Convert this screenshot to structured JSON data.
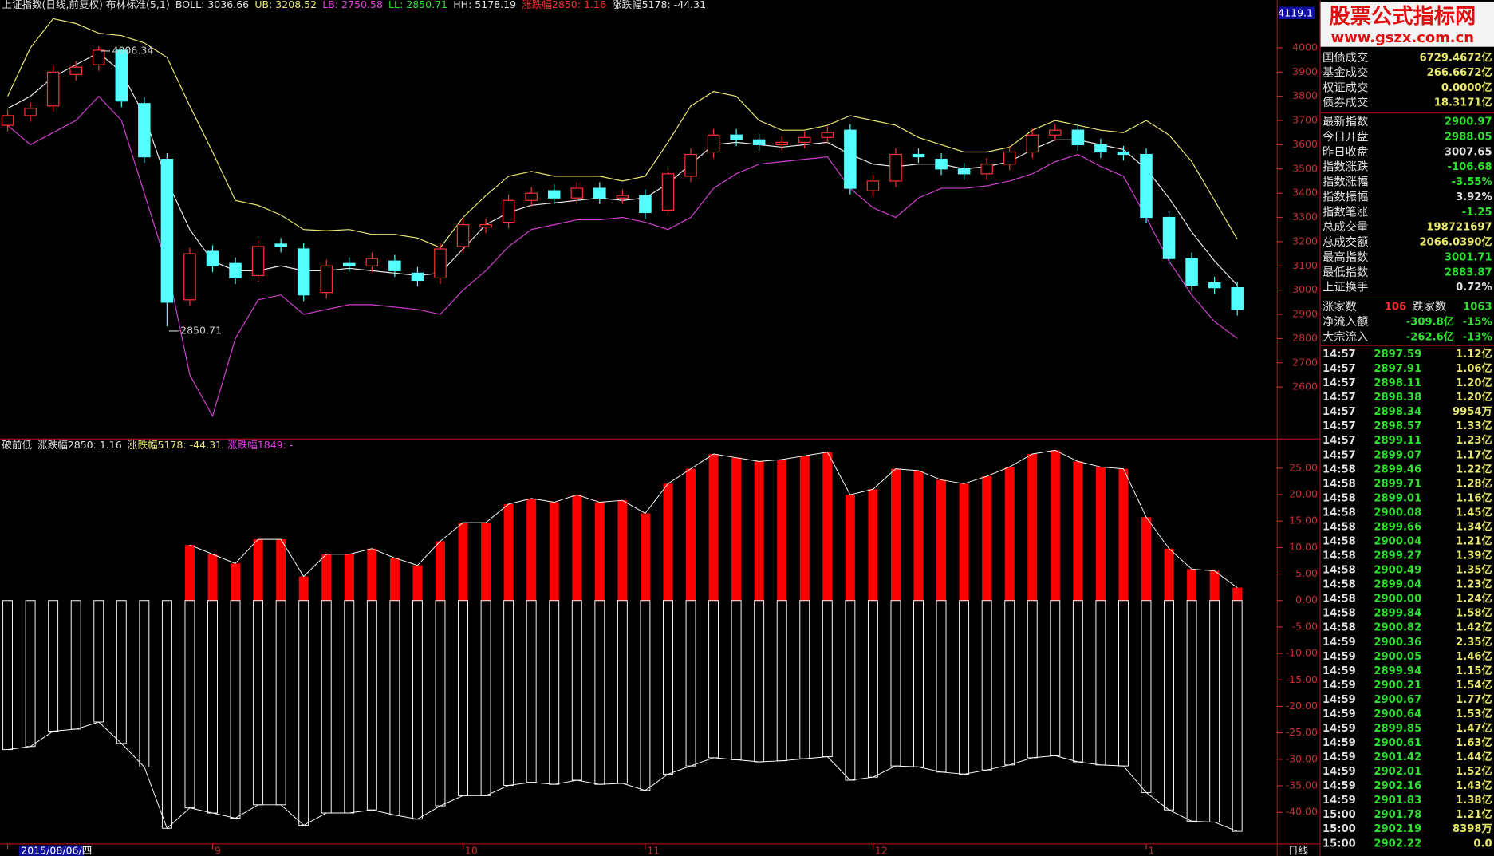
{
  "header": [
    {
      "text": "上证指数(日线,前复权) 布林标准(5,1)",
      "color": "#e0e0e0"
    },
    {
      "text": "BOLL: 3036.66",
      "color": "#e0e0e0"
    },
    {
      "text": "UB: 3208.52",
      "color": "#e8e870"
    },
    {
      "text": "LB: 2750.58",
      "color": "#e040e0"
    },
    {
      "text": "LL: 2850.71",
      "color": "#30e030"
    },
    {
      "text": "HH: 5178.19",
      "color": "#e0e0e0"
    },
    {
      "text": "涨跌幅2850: 1.16",
      "color": "#ff3030"
    },
    {
      "text": "涨跌幅5178: -44.31",
      "color": "#e0e0e0"
    }
  ],
  "sub_header": [
    {
      "text": "破前低",
      "color": "#e0e0e0"
    },
    {
      "text": "涨跌幅2850: 1.16",
      "color": "#e0e0e0"
    },
    {
      "text": "涨跌幅5178: -44.31",
      "color": "#e8e870"
    },
    {
      "text": "涨跌幅1849: -",
      "color": "#e040e0"
    }
  ],
  "chart_data": [
    {
      "type": "candlestick",
      "cursor_value": "4119.1",
      "ylim": [
        2387.7,
        4196.6
      ],
      "yticks": [
        2600,
        2700,
        2800,
        2900,
        3000,
        3100,
        3200,
        3300,
        3400,
        3500,
        3600,
        3700,
        3800,
        3900,
        4000
      ],
      "up_color": "#ff3232",
      "down_color": "#54ffff",
      "open": [
        3680,
        3720,
        3760,
        3890,
        3930,
        3990,
        3770,
        3540,
        2960,
        3160,
        3110,
        3060,
        3190,
        3170,
        2990,
        3110,
        3100,
        3120,
        3070,
        3050,
        3180,
        3260,
        3280,
        3370,
        3410,
        3380,
        3420,
        3380,
        3390,
        3330,
        3470,
        3570,
        3640,
        3620,
        3600,
        3610,
        3630,
        3660,
        3410,
        3450,
        3560,
        3540,
        3500,
        3480,
        3520,
        3570,
        3640,
        3660,
        3600,
        3570,
        3560,
        3300,
        3130,
        3030,
        3010
      ],
      "high": [
        3745,
        3775,
        3925,
        3945,
        4006.34,
        3995,
        3795,
        3565,
        3175,
        3185,
        3135,
        3205,
        3215,
        3195,
        3125,
        3135,
        3155,
        3145,
        3095,
        3195,
        3295,
        3295,
        3395,
        3425,
        3435,
        3445,
        3445,
        3415,
        3415,
        3505,
        3585,
        3665,
        3665,
        3645,
        3635,
        3655,
        3675,
        3685,
        3475,
        3585,
        3585,
        3565,
        3525,
        3545,
        3595,
        3665,
        3685,
        3685,
        3625,
        3595,
        3585,
        3325,
        3155,
        3055,
        3035
      ],
      "low": [
        3655,
        3695,
        3735,
        3865,
        3905,
        3755,
        3525,
        2850.71,
        2935,
        3075,
        3025,
        3035,
        3155,
        2955,
        2965,
        3075,
        3075,
        3055,
        3015,
        3025,
        3155,
        3235,
        3255,
        3345,
        3355,
        3355,
        3355,
        3355,
        3295,
        3305,
        3445,
        3545,
        3595,
        3575,
        3575,
        3585,
        3605,
        3395,
        3385,
        3425,
        3525,
        3475,
        3455,
        3455,
        3495,
        3545,
        3615,
        3575,
        3545,
        3535,
        3275,
        3105,
        2995,
        2985,
        2895
      ],
      "close": [
        3720,
        3750,
        3900,
        3920,
        3990,
        3780,
        3550,
        2950,
        3150,
        3100,
        3050,
        3180,
        3180,
        2980,
        3100,
        3100,
        3130,
        3080,
        3040,
        3170,
        3270,
        3270,
        3370,
        3400,
        3380,
        3420,
        3380,
        3390,
        3320,
        3480,
        3560,
        3640,
        3620,
        3600,
        3610,
        3630,
        3650,
        3420,
        3450,
        3560,
        3550,
        3500,
        3480,
        3520,
        3570,
        3640,
        3660,
        3600,
        3570,
        3560,
        3300,
        3130,
        3020,
        3010,
        2920
      ],
      "lines": [
        {
          "color": "#e8e870",
          "values": [
            3800,
            4000,
            4120,
            4100,
            4060,
            4050,
            4020,
            3960,
            3760,
            3570,
            3370,
            3350,
            3310,
            3250,
            3245,
            3250,
            3230,
            3230,
            3215,
            3175,
            3300,
            3390,
            3470,
            3490,
            3470,
            3470,
            3470,
            3450,
            3470,
            3610,
            3760,
            3820,
            3800,
            3700,
            3660,
            3660,
            3680,
            3720,
            3700,
            3680,
            3630,
            3600,
            3570,
            3570,
            3590,
            3660,
            3700,
            3680,
            3660,
            3650,
            3700,
            3640,
            3530,
            3370,
            3210
          ]
        },
        {
          "color": "#e8e8e8",
          "values": [
            3750,
            3800,
            3880,
            3930,
            3980,
            3900,
            3720,
            3450,
            3250,
            3120,
            3080,
            3080,
            3100,
            3080,
            3080,
            3090,
            3080,
            3070,
            3060,
            3070,
            3170,
            3270,
            3320,
            3350,
            3360,
            3370,
            3380,
            3370,
            3380,
            3440,
            3520,
            3600,
            3610,
            3600,
            3590,
            3600,
            3610,
            3560,
            3520,
            3510,
            3520,
            3520,
            3500,
            3510,
            3530,
            3580,
            3620,
            3620,
            3600,
            3580,
            3500,
            3380,
            3240,
            3120,
            3020
          ]
        },
        {
          "color": "#d040d0",
          "values": [
            3680,
            3600,
            3650,
            3700,
            3800,
            3700,
            3400,
            3100,
            2650,
            2480,
            2800,
            2960,
            2980,
            2900,
            2920,
            2940,
            2940,
            2930,
            2920,
            2900,
            3000,
            3080,
            3180,
            3250,
            3270,
            3290,
            3290,
            3300,
            3280,
            3250,
            3300,
            3420,
            3480,
            3520,
            3530,
            3540,
            3550,
            3420,
            3340,
            3300,
            3380,
            3420,
            3420,
            3430,
            3450,
            3480,
            3530,
            3560,
            3510,
            3470,
            3300,
            3120,
            2980,
            2870,
            2800
          ]
        }
      ],
      "annotations": [
        4006.34,
        2850.71
      ]
    },
    {
      "type": "bar",
      "ylim": [
        -45.9,
        30.25
      ],
      "yticks": [
        {
          "value": 25,
          "label": "25.00"
        },
        {
          "value": 20,
          "label": "20.00"
        },
        {
          "value": 15,
          "label": "15.00"
        },
        {
          "value": 10,
          "label": "10.00"
        },
        {
          "value": 5,
          "label": "5.00"
        },
        {
          "value": 0,
          "label": "0.00"
        },
        {
          "value": -5,
          "label": "-5.00"
        },
        {
          "value": -10,
          "label": "-10.00"
        },
        {
          "value": -15,
          "label": "-15.00"
        },
        {
          "value": -20,
          "label": "-20.00"
        },
        {
          "value": -25,
          "label": "-25.00"
        },
        {
          "value": -30,
          "label": "-30.00"
        },
        {
          "value": -35,
          "label": "-35.00"
        },
        {
          "value": -40,
          "label": "-40.00"
        }
      ],
      "categories": [
        "2015/08/06/四",
        null,
        null,
        null,
        null,
        null,
        null,
        null,
        null,
        "9",
        null,
        null,
        null,
        null,
        null,
        null,
        null,
        null,
        null,
        null,
        "10",
        null,
        null,
        null,
        null,
        null,
        null,
        null,
        "11",
        null,
        null,
        null,
        null,
        null,
        null,
        null,
        null,
        null,
        "12",
        null,
        null,
        null,
        null,
        null,
        null,
        null,
        null,
        null,
        null,
        null,
        "1",
        null,
        null,
        null,
        null
      ],
      "axis_unit": "日线",
      "outline_color": "#ffffff",
      "series": [
        {
          "color": "#ff0000",
          "filled": true,
          "values": [
            null,
            null,
            null,
            null,
            null,
            null,
            null,
            null,
            10.5,
            8.74,
            6.99,
            11.55,
            11.55,
            4.54,
            8.74,
            8.74,
            9.8,
            8.04,
            6.64,
            11.2,
            14.71,
            14.71,
            18.22,
            19.27,
            18.57,
            19.97,
            18.57,
            18.92,
            16.46,
            22.07,
            24.88,
            27.69,
            26.99,
            26.28,
            26.64,
            27.34,
            28.04,
            19.97,
            21.02,
            24.88,
            24.53,
            22.78,
            22.07,
            23.48,
            25.23,
            27.69,
            28.39,
            26.28,
            25.23,
            24.88,
            15.76,
            9.8,
            5.94,
            5.59,
            2.43
          ]
        },
        {
          "color": "#ffffff",
          "filled": false,
          "values": [
            -28.16,
            -27.58,
            -24.68,
            -24.3,
            -22.95,
            -27.0,
            -31.44,
            -43.03,
            -39.17,
            -40.13,
            -41.1,
            -38.59,
            -38.59,
            -42.45,
            -40.13,
            -40.13,
            -39.55,
            -40.52,
            -41.29,
            -38.78,
            -36.85,
            -36.85,
            -34.92,
            -34.34,
            -34.73,
            -33.95,
            -34.73,
            -34.53,
            -35.88,
            -32.8,
            -31.25,
            -29.71,
            -30.09,
            -30.48,
            -30.28,
            -29.9,
            -29.51,
            -33.95,
            -33.37,
            -31.25,
            -31.44,
            -32.41,
            -32.8,
            -32.02,
            -31.06,
            -29.71,
            -29.32,
            -30.48,
            -31.06,
            -31.25,
            -36.27,
            -39.55,
            -41.68,
            -41.87,
            -43.61
          ]
        }
      ]
    }
  ],
  "panel": {
    "logo": "股票公式指标网",
    "url": "www.gszx.com.cn",
    "stats": [
      {
        "label": "国债成交",
        "value": "6729.4672亿",
        "color": "#e8e870"
      },
      {
        "label": "基金成交",
        "value": "266.6672亿",
        "color": "#e8e870"
      },
      {
        "label": "权证成交",
        "value": "0.0000亿",
        "color": "#e8e870"
      },
      {
        "label": "债券成交",
        "value": "18.3171亿",
        "color": "#e8e870"
      },
      {
        "label": "最新指数",
        "value": "2900.97",
        "color": "#30e030"
      },
      {
        "label": "今日开盘",
        "value": "2988.05",
        "color": "#30e030"
      },
      {
        "label": "昨日收盘",
        "value": "3007.65",
        "color": "#e0e0e0"
      },
      {
        "label": "指数涨跌",
        "value": "-106.68",
        "color": "#30e030"
      },
      {
        "label": "指数涨幅",
        "value": "-3.55%",
        "color": "#30e030"
      },
      {
        "label": "指数振幅",
        "value": "3.92%",
        "color": "#e0e0e0"
      },
      {
        "label": "指数笔涨",
        "value": "-1.25",
        "color": "#30e030"
      },
      {
        "label": "总成交量",
        "value": "198721697",
        "color": "#e8e870"
      },
      {
        "label": "总成交额",
        "value": "2066.0390亿",
        "color": "#e8e870"
      },
      {
        "label": "最高指数",
        "value": "3001.71",
        "color": "#30e030"
      },
      {
        "label": "最低指数",
        "value": "2883.87",
        "color": "#30e030"
      },
      {
        "label": "上证换手",
        "value": "0.72%",
        "color": "#e0e0e0"
      }
    ],
    "breadth": [
      "涨家数",
      "106",
      "跌家数",
      "1063"
    ],
    "flows": [
      [
        "净流入额",
        "-309.8亿",
        "-15%"
      ],
      [
        "大宗流入",
        "-262.6亿",
        "-13%"
      ]
    ],
    "ticks": [
      [
        "14:57",
        "2897.59",
        "1.12亿"
      ],
      [
        "14:57",
        "2897.91",
        "1.06亿"
      ],
      [
        "14:57",
        "2898.11",
        "1.20亿"
      ],
      [
        "14:57",
        "2898.38",
        "1.20亿"
      ],
      [
        "14:57",
        "2898.34",
        "9954万"
      ],
      [
        "14:57",
        "2898.57",
        "1.33亿"
      ],
      [
        "14:57",
        "2899.11",
        "1.23亿"
      ],
      [
        "14:57",
        "2899.07",
        "1.17亿"
      ],
      [
        "14:58",
        "2899.46",
        "1.22亿"
      ],
      [
        "14:58",
        "2899.71",
        "1.28亿"
      ],
      [
        "14:58",
        "2899.01",
        "1.16亿"
      ],
      [
        "14:58",
        "2900.08",
        "1.45亿"
      ],
      [
        "14:58",
        "2899.66",
        "1.34亿"
      ],
      [
        "14:58",
        "2900.04",
        "1.21亿"
      ],
      [
        "14:58",
        "2899.27",
        "1.39亿"
      ],
      [
        "14:58",
        "2900.49",
        "1.35亿"
      ],
      [
        "14:58",
        "2899.04",
        "1.23亿"
      ],
      [
        "14:58",
        "2900.00",
        "1.24亿"
      ],
      [
        "14:58",
        "2899.84",
        "1.58亿"
      ],
      [
        "14:58",
        "2900.82",
        "1.42亿"
      ],
      [
        "14:59",
        "2900.36",
        "2.35亿"
      ],
      [
        "14:59",
        "2900.05",
        "1.46亿"
      ],
      [
        "14:59",
        "2899.94",
        "1.15亿"
      ],
      [
        "14:59",
        "2900.21",
        "1.54亿"
      ],
      [
        "14:59",
        "2900.67",
        "1.77亿"
      ],
      [
        "14:59",
        "2900.64",
        "1.53亿"
      ],
      [
        "14:59",
        "2899.85",
        "1.47亿"
      ],
      [
        "14:59",
        "2900.61",
        "1.63亿"
      ],
      [
        "14:59",
        "2901.42",
        "1.44亿"
      ],
      [
        "14:59",
        "2902.01",
        "1.52亿"
      ],
      [
        "14:59",
        "2902.16",
        "1.43亿"
      ],
      [
        "14:59",
        "2901.83",
        "1.38亿"
      ],
      [
        "15:00",
        "2901.78",
        "1.21亿"
      ],
      [
        "15:00",
        "2902.19",
        "8398万"
      ],
      [
        "15:00",
        "2902.22",
        "0.0"
      ]
    ]
  }
}
